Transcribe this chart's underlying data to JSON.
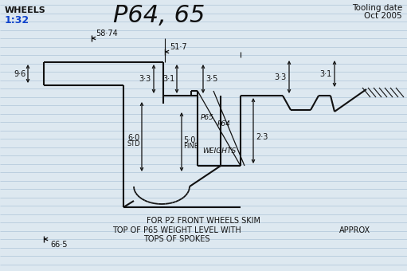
{
  "title": "P64, 65",
  "label_wheels": "WHEELS",
  "label_scale": "1:32",
  "label_tooling": "Tooling date",
  "label_date": "Oct 2005",
  "bg_color": "#dde8f0",
  "line_color": "#111111",
  "blue_color": "#1144cc",
  "dim_58_74": "58·74",
  "dim_51_7": "51·7",
  "dim_9_6": "9·6",
  "dim_3_3a": "3·3",
  "dim_3_1a": "3·1",
  "dim_3_5": "3·5",
  "dim_3_3b": "3·3",
  "dim_3_1b": "3·1",
  "dim_6_0": "6·0",
  "dim_std": "STD",
  "dim_5_0": "5·0",
  "dim_fine": "FINE",
  "dim_2_3": "2·3",
  "dim_66_5": "66·5",
  "label_p65": "P65",
  "label_p64": "P64",
  "label_weights": "WEIGHTS",
  "note1": "FOR P2 FRONT WHEELS SKIM",
  "note2": "TOP OF P65 WEIGHT LEVEL WITH",
  "note3": "TOPS OF SPOKES",
  "note4": "APPROX"
}
